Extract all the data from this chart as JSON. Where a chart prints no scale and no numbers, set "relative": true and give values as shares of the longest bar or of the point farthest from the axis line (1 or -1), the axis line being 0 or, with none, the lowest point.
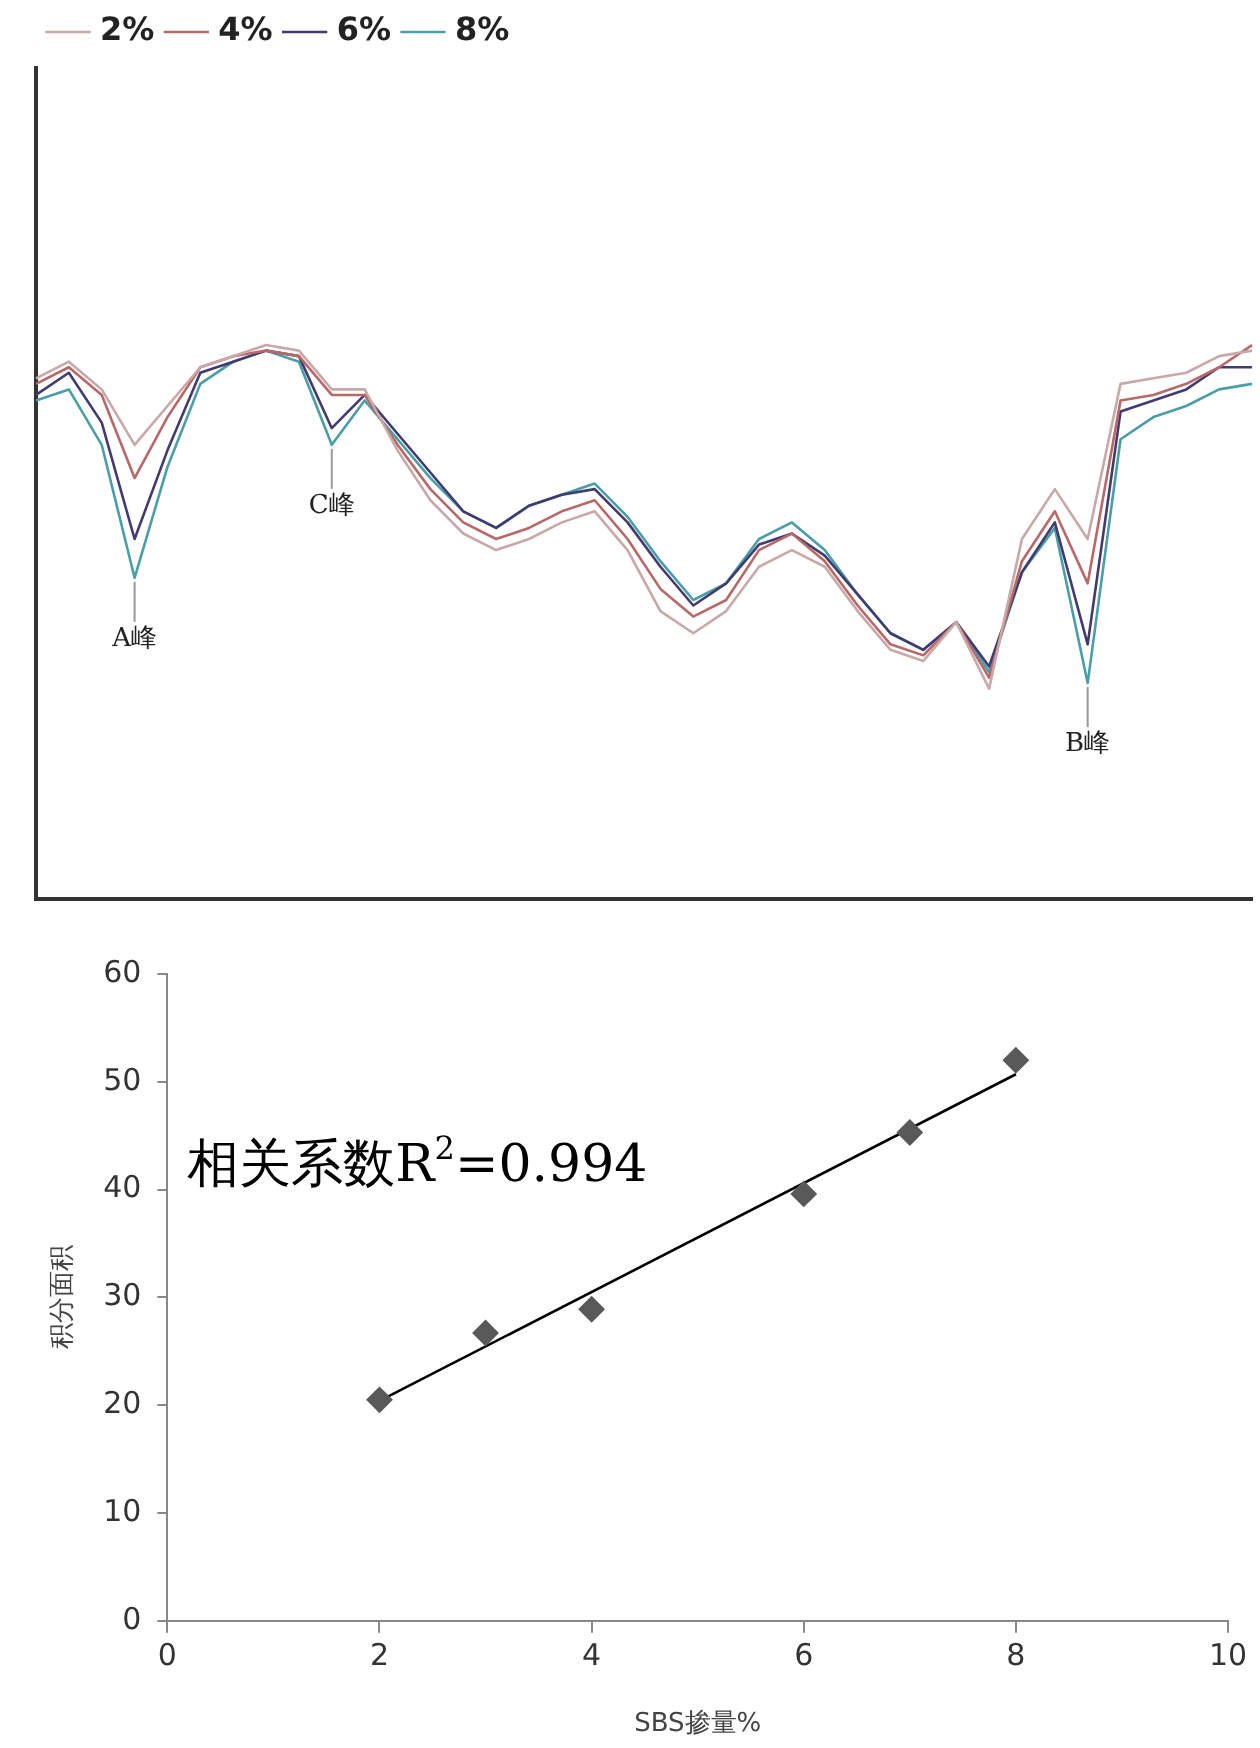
{
  "chart_data": [
    {
      "type": "line",
      "relative": true,
      "legend": "top left",
      "grid": false,
      "categories": [
        null,
        null,
        null,
        null,
        null,
        null,
        null,
        null,
        null,
        null,
        null,
        null,
        null,
        null,
        null,
        null,
        null,
        null,
        null,
        null,
        null,
        null,
        null,
        null,
        null,
        null,
        null,
        null,
        null,
        null,
        null,
        null,
        null,
        null,
        null,
        null,
        null,
        null
      ],
      "series": [
        {
          "name": "2%",
          "color": "#c8a8a8",
          "values": [
            0.94,
            0.97,
            0.92,
            0.82,
            0.89,
            0.96,
            0.98,
            1.0,
            0.99,
            0.92,
            0.92,
            0.81,
            0.72,
            0.66,
            0.63,
            0.65,
            0.68,
            0.7,
            0.63,
            0.52,
            0.48,
            0.52,
            0.6,
            0.63,
            0.6,
            0.52,
            0.45,
            0.43,
            0.5,
            0.38,
            0.65,
            0.74,
            0.65,
            0.93,
            0.94,
            0.95,
            0.98,
            0.99
          ]
        },
        {
          "name": "4%",
          "color": "#b86868",
          "values": [
            0.93,
            0.96,
            0.91,
            0.76,
            0.87,
            0.96,
            0.98,
            0.99,
            0.98,
            0.91,
            0.91,
            0.82,
            0.74,
            0.68,
            0.65,
            0.67,
            0.7,
            0.72,
            0.65,
            0.56,
            0.51,
            0.54,
            0.63,
            0.66,
            0.61,
            0.53,
            0.46,
            0.44,
            0.5,
            0.4,
            0.61,
            0.7,
            0.57,
            0.9,
            0.91,
            0.93,
            0.96,
            1.0
          ]
        },
        {
          "name": "6%",
          "color": "#403c70",
          "values": [
            0.91,
            0.95,
            0.86,
            0.65,
            0.81,
            0.95,
            0.97,
            0.99,
            0.98,
            0.85,
            0.91,
            0.84,
            0.77,
            0.7,
            0.67,
            0.71,
            0.73,
            0.74,
            0.68,
            0.6,
            0.53,
            0.57,
            0.64,
            0.66,
            0.62,
            0.55,
            0.48,
            0.45,
            0.5,
            0.42,
            0.59,
            0.68,
            0.46,
            0.88,
            0.9,
            0.92,
            0.96,
            0.96
          ]
        },
        {
          "name": "8%",
          "color": "#4a9ea6",
          "values": [
            0.9,
            0.92,
            0.82,
            0.58,
            0.78,
            0.93,
            0.97,
            0.99,
            0.97,
            0.82,
            0.9,
            0.83,
            0.76,
            0.7,
            0.67,
            0.71,
            0.73,
            0.75,
            0.69,
            0.61,
            0.54,
            0.57,
            0.65,
            0.68,
            0.63,
            0.55,
            0.48,
            0.45,
            0.5,
            0.41,
            0.59,
            0.67,
            0.39,
            0.83,
            0.87,
            0.89,
            0.92,
            0.93
          ]
        }
      ],
      "annotations": [
        "A峰",
        "C峰",
        "B峰"
      ]
    },
    {
      "type": "scatter",
      "xlabel": "SBS掺量%",
      "ylabel": "积分面积",
      "marker": "diamond",
      "grid": false,
      "xlim": [
        0,
        10
      ],
      "xticks": [
        0,
        2,
        4,
        6,
        8,
        10
      ],
      "ylim": [
        0,
        60
      ],
      "yticks": [
        0,
        10,
        20,
        30,
        40,
        50,
        60
      ],
      "series": [
        {
          "color": "#595959",
          "x": [
            2,
            3,
            4,
            6,
            7,
            8
          ],
          "values": [
            20.5,
            26.7,
            28.9,
            39.6,
            45.3,
            52
          ]
        },
        {
          "type": "line",
          "color": "#000000",
          "marker": "none",
          "x": [
            2,
            8
          ],
          "values": [
            20.4,
            50.7
          ]
        }
      ],
      "annotations": [
        "相关系数R$^{2}$=0.994"
      ]
    }
  ]
}
